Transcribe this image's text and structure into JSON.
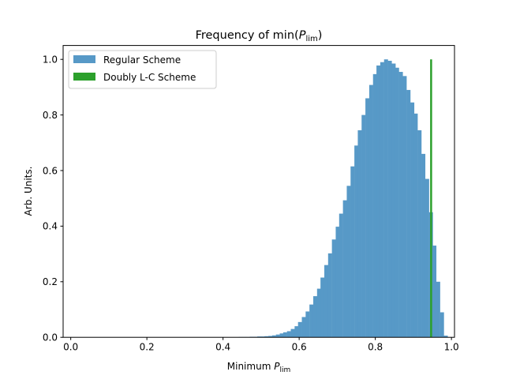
{
  "chart_data": {
    "type": "bar",
    "title_main": "Frequency of min(",
    "title_var": "P",
    "title_sub": "lim",
    "title_close": ")",
    "xlabel_main": "Minimum ",
    "xlabel_var": "P",
    "xlabel_sub": "lim",
    "ylabel": "Arb. Units.",
    "xlim": [
      -0.02,
      1.008
    ],
    "ylim": [
      0,
      1.05
    ],
    "xticks": [
      "0.0",
      "0.2",
      "0.4",
      "0.6",
      "0.8",
      "1.0"
    ],
    "yticks": [
      "0.0",
      "0.2",
      "0.4",
      "0.6",
      "0.8",
      "1.0"
    ],
    "grid": false,
    "legend_position": "top-left",
    "colors": {
      "regular": "#5799c7",
      "doubly": "#2ca02c"
    },
    "series": [
      {
        "name": "Regular Scheme",
        "bin_width": 0.0098,
        "bins": [
          [
            0.441,
            0.001
          ],
          [
            0.451,
            0.001
          ],
          [
            0.46,
            0.001
          ],
          [
            0.47,
            0.002
          ],
          [
            0.48,
            0.002
          ],
          [
            0.49,
            0.003
          ],
          [
            0.5,
            0.003
          ],
          [
            0.509,
            0.004
          ],
          [
            0.519,
            0.005
          ],
          [
            0.529,
            0.007
          ],
          [
            0.539,
            0.01
          ],
          [
            0.549,
            0.014
          ],
          [
            0.558,
            0.018
          ],
          [
            0.568,
            0.022
          ],
          [
            0.578,
            0.03
          ],
          [
            0.588,
            0.04
          ],
          [
            0.597,
            0.055
          ],
          [
            0.607,
            0.073
          ],
          [
            0.617,
            0.093
          ],
          [
            0.627,
            0.118
          ],
          [
            0.637,
            0.148
          ],
          [
            0.647,
            0.175
          ],
          [
            0.656,
            0.215
          ],
          [
            0.666,
            0.26
          ],
          [
            0.676,
            0.302
          ],
          [
            0.686,
            0.352
          ],
          [
            0.696,
            0.398
          ],
          [
            0.705,
            0.445
          ],
          [
            0.715,
            0.493
          ],
          [
            0.725,
            0.545
          ],
          [
            0.735,
            0.615
          ],
          [
            0.745,
            0.69
          ],
          [
            0.754,
            0.745
          ],
          [
            0.764,
            0.8
          ],
          [
            0.774,
            0.86
          ],
          [
            0.784,
            0.908
          ],
          [
            0.794,
            0.947
          ],
          [
            0.803,
            0.978
          ],
          [
            0.813,
            0.99
          ],
          [
            0.823,
            1.0
          ],
          [
            0.833,
            0.995
          ],
          [
            0.843,
            0.985
          ],
          [
            0.852,
            0.97
          ],
          [
            0.862,
            0.955
          ],
          [
            0.872,
            0.94
          ],
          [
            0.882,
            0.89
          ],
          [
            0.892,
            0.845
          ],
          [
            0.901,
            0.805
          ],
          [
            0.911,
            0.745
          ],
          [
            0.921,
            0.66
          ],
          [
            0.931,
            0.57
          ],
          [
            0.941,
            0.45
          ],
          [
            0.95,
            0.33
          ],
          [
            0.96,
            0.2
          ],
          [
            0.97,
            0.09
          ],
          [
            0.98,
            0.006
          ]
        ]
      },
      {
        "name": "Doubly L-C Scheme",
        "bin_width": 0.005,
        "bins": [
          [
            0.944,
            1.0
          ]
        ]
      }
    ]
  }
}
